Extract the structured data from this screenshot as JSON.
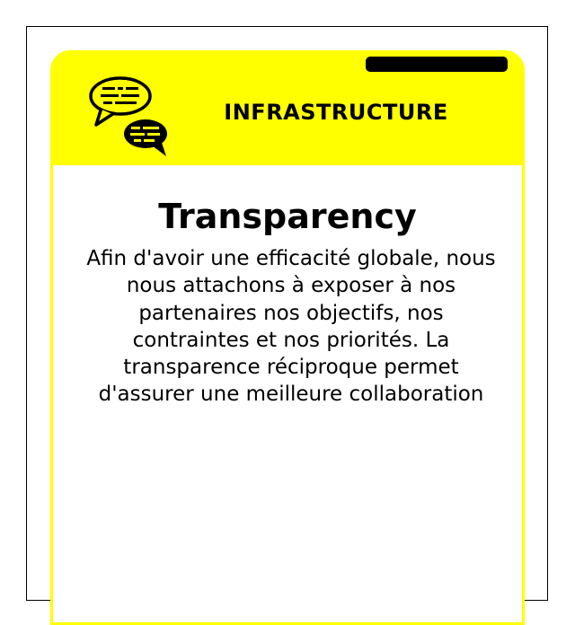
{
  "card": {
    "category": "INFRASTRUCTURE",
    "title": "Transparency",
    "description": "Afin d'avoir une efficacité globale, nous nous attachons à exposer à nos partenaires nos objectifs, nos contraintes et nos priorités. La transparence réciproque permet d'assurer une meilleure collaboration",
    "icon": "speech-bubbles-icon",
    "colors": {
      "accent": "#ffff00",
      "text": "#000000",
      "background": "#ffffff"
    }
  }
}
